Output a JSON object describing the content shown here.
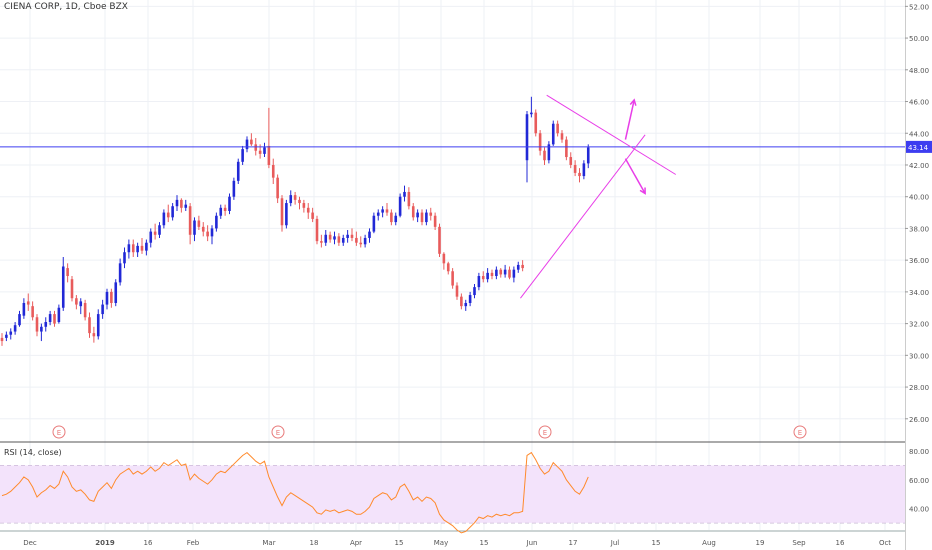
{
  "title": "CIENA CORP, 1D, Cboe BZX",
  "price_badge": "43.14",
  "earnings_marker": "E",
  "rsi_label": "RSI (14, close)",
  "colors": {
    "up": "#2128d6",
    "down": "#e85b5b",
    "trendline": "#e83ee8",
    "hline": "#3d3df0",
    "rsi_line": "#ff8a2c",
    "rsi_band": "#f3e3fb",
    "grid": "#eef0f5",
    "earnings": "#e87a7a"
  },
  "chart_data": [
    {
      "type": "candlestick",
      "title": "CIENA CORP, 1D, Cboe BZX",
      "ylim": [
        24.6,
        52.4
      ],
      "price_ticks": [
        "26.00",
        "28.00",
        "30.00",
        "32.00",
        "34.00",
        "36.00",
        "38.00",
        "40.00",
        "42.00",
        "44.00",
        "46.00",
        "48.00",
        "50.00",
        "52.00"
      ],
      "x_ticks": [
        "Dec",
        "2019",
        "16",
        "Feb",
        "Mar",
        "18",
        "Apr",
        "15",
        "May",
        "15",
        "Jun",
        "17",
        "Jul",
        "15",
        "Aug",
        "19",
        "Sep",
        "16",
        "Oct"
      ],
      "horizontal_line": 43.14,
      "ohlc": [
        [
          31.1,
          31.4,
          30.6,
          30.9
        ],
        [
          31.1,
          31.5,
          30.9,
          31.3
        ],
        [
          31.3,
          31.7,
          31.0,
          31.5
        ],
        [
          31.5,
          32.1,
          31.3,
          31.9
        ],
        [
          31.9,
          32.8,
          31.8,
          32.6
        ],
        [
          32.5,
          33.6,
          32.3,
          33.3
        ],
        [
          33.4,
          33.9,
          32.8,
          33.2
        ],
        [
          33.1,
          33.4,
          32.2,
          32.4
        ],
        [
          32.4,
          32.6,
          31.2,
          31.5
        ],
        [
          31.5,
          32.0,
          30.9,
          31.8
        ],
        [
          31.8,
          32.4,
          31.5,
          32.1
        ],
        [
          32.1,
          32.8,
          31.9,
          32.6
        ],
        [
          32.6,
          32.8,
          31.8,
          32.0
        ],
        [
          32.1,
          33.2,
          32.0,
          33.0
        ],
        [
          33.0,
          36.2,
          32.8,
          35.6
        ],
        [
          35.5,
          35.8,
          34.6,
          35.0
        ],
        [
          34.8,
          35.0,
          33.4,
          33.6
        ],
        [
          33.6,
          33.8,
          32.9,
          33.2
        ],
        [
          33.1,
          33.6,
          32.6,
          33.4
        ],
        [
          33.3,
          33.5,
          32.2,
          32.4
        ],
        [
          32.4,
          32.7,
          31.1,
          31.4
        ],
        [
          31.4,
          31.8,
          30.8,
          31.2
        ],
        [
          31.2,
          32.9,
          31.0,
          32.6
        ],
        [
          32.6,
          33.5,
          32.3,
          33.2
        ],
        [
          33.2,
          34.2,
          32.9,
          34.0
        ],
        [
          34.0,
          34.2,
          33.0,
          33.3
        ],
        [
          33.3,
          34.8,
          33.1,
          34.6
        ],
        [
          34.6,
          36.1,
          34.4,
          35.8
        ],
        [
          35.8,
          36.8,
          35.5,
          36.5
        ],
        [
          36.5,
          37.3,
          36.1,
          37.0
        ],
        [
          37.0,
          37.3,
          36.2,
          36.5
        ],
        [
          36.5,
          37.1,
          36.2,
          36.9
        ],
        [
          36.9,
          37.4,
          36.4,
          36.6
        ],
        [
          36.6,
          37.3,
          36.3,
          37.1
        ],
        [
          37.1,
          38.0,
          36.8,
          37.8
        ],
        [
          37.8,
          38.3,
          37.3,
          37.6
        ],
        [
          37.6,
          38.4,
          37.4,
          38.2
        ],
        [
          38.2,
          39.2,
          38.0,
          39.0
        ],
        [
          39.0,
          39.5,
          38.4,
          38.7
        ],
        [
          38.7,
          39.6,
          38.5,
          39.4
        ],
        [
          39.4,
          40.1,
          39.1,
          39.8
        ],
        [
          39.8,
          39.9,
          39.0,
          39.3
        ],
        [
          39.3,
          39.8,
          39.1,
          39.5
        ],
        [
          39.4,
          39.6,
          37.0,
          37.6
        ],
        [
          37.6,
          38.7,
          37.2,
          38.5
        ],
        [
          38.5,
          38.8,
          37.9,
          38.1
        ],
        [
          38.1,
          38.4,
          37.5,
          37.8
        ],
        [
          37.8,
          38.2,
          37.2,
          37.5
        ],
        [
          37.5,
          38.2,
          37.0,
          38.0
        ],
        [
          38.0,
          39.0,
          37.8,
          38.8
        ],
        [
          38.8,
          39.5,
          38.6,
          39.3
        ],
        [
          39.3,
          39.5,
          38.8,
          39.1
        ],
        [
          39.1,
          40.2,
          38.9,
          40.0
        ],
        [
          40.0,
          41.2,
          39.8,
          41.0
        ],
        [
          41.0,
          42.4,
          40.8,
          42.2
        ],
        [
          42.2,
          43.2,
          42.0,
          43.0
        ],
        [
          43.0,
          43.8,
          42.8,
          43.6
        ],
        [
          43.6,
          44.0,
          43.2,
          43.3
        ],
        [
          43.3,
          43.7,
          42.6,
          42.9
        ],
        [
          42.9,
          43.3,
          42.4,
          42.7
        ],
        [
          42.7,
          43.4,
          42.5,
          43.1
        ],
        [
          43.2,
          45.6,
          41.8,
          42.0
        ],
        [
          42.0,
          42.4,
          40.8,
          41.2
        ],
        [
          41.2,
          41.4,
          39.6,
          39.9
        ],
        [
          39.9,
          40.1,
          37.8,
          38.2
        ],
        [
          38.2,
          39.8,
          38.0,
          39.6
        ],
        [
          39.6,
          40.4,
          39.4,
          40.1
        ],
        [
          40.1,
          40.3,
          39.5,
          39.8
        ],
        [
          39.8,
          40.0,
          39.2,
          39.6
        ],
        [
          39.6,
          39.8,
          39.0,
          39.3
        ],
        [
          39.3,
          39.6,
          38.6,
          39.0
        ],
        [
          39.0,
          39.3,
          38.4,
          38.6
        ],
        [
          38.6,
          38.8,
          37.0,
          37.2
        ],
        [
          37.2,
          37.6,
          36.8,
          37.1
        ],
        [
          37.1,
          37.9,
          36.9,
          37.6
        ],
        [
          37.6,
          37.8,
          37.1,
          37.3
        ],
        [
          37.3,
          37.8,
          37.0,
          37.5
        ],
        [
          37.5,
          37.7,
          36.9,
          37.1
        ],
        [
          37.1,
          37.6,
          36.9,
          37.4
        ],
        [
          37.4,
          37.9,
          37.1,
          37.6
        ],
        [
          37.6,
          38.0,
          37.2,
          37.4
        ],
        [
          37.4,
          37.8,
          36.9,
          37.1
        ],
        [
          37.1,
          37.5,
          36.8,
          37.0
        ],
        [
          37.0,
          37.6,
          36.8,
          37.4
        ],
        [
          37.4,
          38.0,
          37.1,
          37.8
        ],
        [
          37.8,
          39.0,
          37.7,
          38.8
        ],
        [
          38.8,
          39.2,
          38.5,
          39.0
        ],
        [
          39.0,
          39.4,
          38.7,
          39.2
        ],
        [
          39.2,
          39.6,
          38.8,
          39.0
        ],
        [
          39.0,
          39.2,
          38.2,
          38.4
        ],
        [
          38.4,
          39.0,
          38.2,
          38.8
        ],
        [
          38.8,
          40.2,
          38.7,
          40.0
        ],
        [
          40.0,
          40.7,
          39.7,
          40.3
        ],
        [
          40.3,
          40.6,
          39.2,
          39.4
        ],
        [
          39.4,
          39.6,
          38.5,
          38.7
        ],
        [
          38.7,
          39.2,
          38.4,
          39.0
        ],
        [
          39.0,
          39.2,
          38.2,
          38.4
        ],
        [
          38.4,
          39.2,
          38.2,
          39.0
        ],
        [
          39.0,
          39.3,
          38.5,
          38.8
        ],
        [
          38.8,
          39.0,
          37.9,
          38.1
        ],
        [
          38.1,
          38.3,
          36.2,
          36.4
        ],
        [
          36.4,
          36.5,
          35.4,
          35.8
        ],
        [
          35.8,
          35.9,
          35.1,
          35.3
        ],
        [
          35.3,
          35.5,
          34.2,
          34.4
        ],
        [
          34.4,
          34.6,
          33.5,
          33.7
        ],
        [
          33.7,
          33.9,
          32.9,
          33.1
        ],
        [
          33.1,
          33.5,
          32.8,
          33.3
        ],
        [
          33.3,
          34.0,
          33.1,
          33.8
        ],
        [
          33.8,
          34.5,
          33.6,
          34.3
        ],
        [
          34.3,
          35.2,
          34.1,
          35.0
        ],
        [
          35.0,
          35.3,
          34.6,
          34.8
        ],
        [
          34.8,
          35.5,
          34.6,
          35.2
        ],
        [
          35.2,
          35.4,
          34.8,
          35.0
        ],
        [
          35.0,
          35.6,
          34.8,
          35.4
        ],
        [
          35.4,
          35.5,
          34.9,
          35.1
        ],
        [
          35.1,
          35.7,
          34.9,
          35.4
        ],
        [
          35.4,
          35.6,
          34.8,
          34.9
        ],
        [
          34.9,
          35.6,
          34.6,
          35.4
        ],
        [
          35.4,
          35.9,
          35.2,
          35.7
        ],
        [
          35.7,
          36.0,
          35.3,
          35.5
        ],
        [
          42.3,
          45.4,
          40.9,
          45.2
        ],
        [
          45.2,
          46.3,
          45.0,
          45.3
        ],
        [
          45.3,
          45.5,
          43.8,
          44.0
        ],
        [
          44.0,
          44.2,
          42.6,
          42.9
        ],
        [
          42.9,
          43.1,
          42.0,
          42.3
        ],
        [
          42.3,
          43.5,
          42.1,
          43.3
        ],
        [
          43.3,
          44.8,
          43.2,
          44.6
        ],
        [
          44.6,
          44.8,
          43.8,
          44.0
        ],
        [
          44.0,
          44.2,
          43.4,
          43.6
        ],
        [
          43.6,
          43.8,
          42.3,
          42.5
        ],
        [
          42.5,
          42.8,
          41.8,
          42.0
        ],
        [
          42.0,
          42.3,
          41.3,
          41.5
        ],
        [
          41.5,
          41.8,
          40.9,
          41.3
        ],
        [
          41.3,
          42.3,
          41.1,
          42.1
        ],
        [
          42.1,
          43.3,
          41.8,
          43.1
        ]
      ],
      "earnings_at": [
        "Dec",
        "Mar",
        "Jun",
        "Sep"
      ]
    },
    {
      "type": "line",
      "title": "RSI (14, close)",
      "ylim": [
        25,
        85
      ],
      "ticks": [
        "40.00",
        "60.00",
        "80.00"
      ],
      "bands": [
        30,
        70
      ],
      "values": [
        49,
        50,
        52,
        55,
        58,
        62,
        60,
        55,
        48,
        51,
        53,
        56,
        54,
        57,
        66,
        62,
        55,
        52,
        53,
        50,
        46,
        45,
        52,
        55,
        58,
        54,
        60,
        64,
        66,
        68,
        64,
        66,
        64,
        66,
        69,
        66,
        68,
        72,
        70,
        72,
        74,
        70,
        71,
        60,
        64,
        61,
        59,
        57,
        60,
        64,
        66,
        65,
        68,
        71,
        74,
        77,
        79,
        76,
        73,
        71,
        73,
        62,
        55,
        48,
        42,
        48,
        51,
        49,
        47,
        45,
        43,
        41,
        37,
        36,
        39,
        38,
        39,
        37,
        38,
        39,
        38,
        36,
        36,
        38,
        41,
        47,
        49,
        51,
        50,
        46,
        48,
        55,
        57,
        52,
        46,
        48,
        45,
        48,
        47,
        44,
        36,
        32,
        30,
        28,
        25,
        23,
        24,
        27,
        30,
        34,
        33,
        35,
        34,
        36,
        35,
        36,
        35,
        37,
        37,
        38,
        77,
        79,
        74,
        68,
        64,
        66,
        72,
        69,
        66,
        60,
        56,
        52,
        50,
        55,
        62
      ]
    }
  ]
}
